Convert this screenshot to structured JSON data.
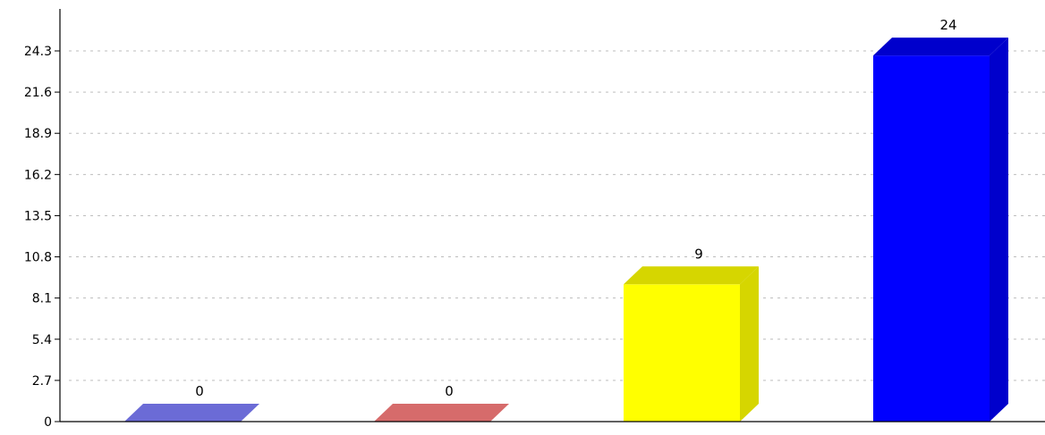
{
  "chart_data": {
    "type": "bar",
    "title": "",
    "xlabel": "",
    "ylabel": "",
    "categories": [
      "",
      "",
      "",
      ""
    ],
    "values": [
      0,
      0,
      9,
      24
    ],
    "data_labels": [
      "0",
      "0",
      "9",
      "24"
    ],
    "bar_colors": [
      {
        "front": "#6b6bd6",
        "side": "#5a5ac4"
      },
      {
        "front": "#d66b6b",
        "side": "#c45a5a"
      },
      {
        "front": "#ffff00",
        "side": "#d6d600"
      },
      {
        "front": "#0000ff",
        "side": "#0000cc"
      }
    ],
    "ylim": [
      0,
      27
    ],
    "yticks": [
      "0",
      "2.7",
      "5.4",
      "8.1",
      "10.8",
      "13.5",
      "16.2",
      "18.9",
      "21.6",
      "24.3"
    ],
    "ytick_values": [
      0,
      2.7,
      5.4,
      8.1,
      10.8,
      13.5,
      16.2,
      18.9,
      21.6,
      24.3
    ],
    "grid": true,
    "legend": "none",
    "style": "3d-bars"
  }
}
